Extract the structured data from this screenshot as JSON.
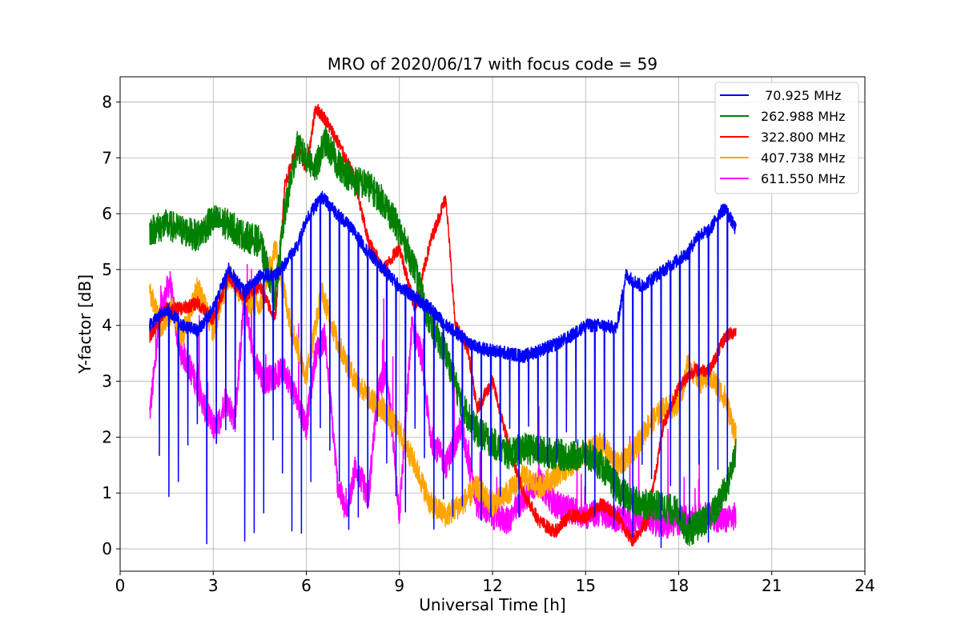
{
  "chart_data": {
    "type": "line",
    "title": "MRO of 2020/06/17 with focus code = 59",
    "xlabel": "Universal Time [h]",
    "ylabel": "Y-factor [dB]",
    "xlim": [
      0,
      24
    ],
    "ylim": [
      -0.4,
      8.45
    ],
    "xticks": [
      0,
      3,
      6,
      9,
      12,
      15,
      18,
      21,
      24
    ],
    "yticks": [
      0,
      1,
      2,
      3,
      4,
      5,
      6,
      7,
      8
    ],
    "grid": true,
    "legend_position": "top-right",
    "series": [
      {
        "name": " 70.925 MHz",
        "color": "#0000ff",
        "dips": {
          "start": 0.95,
          "period": 0.305,
          "end": 19.8,
          "floor_min": 0.0,
          "floor_max": 2.3
        },
        "points": [
          [
            0.95,
            4.0
          ],
          [
            1.5,
            4.3
          ],
          [
            2.0,
            4.0
          ],
          [
            2.5,
            3.9
          ],
          [
            3.0,
            4.3
          ],
          [
            3.5,
            5.0
          ],
          [
            4.0,
            4.6
          ],
          [
            4.5,
            4.9
          ],
          [
            5.0,
            4.9
          ],
          [
            5.3,
            5.1
          ],
          [
            5.7,
            5.4
          ],
          [
            6.0,
            5.9
          ],
          [
            6.5,
            6.3
          ],
          [
            7.0,
            6.0
          ],
          [
            7.5,
            5.7
          ],
          [
            8.0,
            5.3
          ],
          [
            8.5,
            5.0
          ],
          [
            9.0,
            4.7
          ],
          [
            9.5,
            4.5
          ],
          [
            10.0,
            4.3
          ],
          [
            10.5,
            4.0
          ],
          [
            11.0,
            3.8
          ],
          [
            11.5,
            3.6
          ],
          [
            12.0,
            3.55
          ],
          [
            12.5,
            3.5
          ],
          [
            13.0,
            3.45
          ],
          [
            13.5,
            3.55
          ],
          [
            14.0,
            3.65
          ],
          [
            14.5,
            3.8
          ],
          [
            15.0,
            4.0
          ],
          [
            15.5,
            4.0
          ],
          [
            16.0,
            3.95
          ],
          [
            16.3,
            4.9
          ],
          [
            16.8,
            4.7
          ],
          [
            17.3,
            4.9
          ],
          [
            17.8,
            5.1
          ],
          [
            18.3,
            5.3
          ],
          [
            18.6,
            5.6
          ],
          [
            19.0,
            5.7
          ],
          [
            19.3,
            6.0
          ],
          [
            19.5,
            6.1
          ],
          [
            19.85,
            5.7
          ]
        ]
      },
      {
        "name": "262.988 MHz",
        "color": "#008000",
        "points": [
          [
            0.95,
            5.7
          ],
          [
            1.5,
            5.8
          ],
          [
            2.0,
            5.7
          ],
          [
            2.5,
            5.6
          ],
          [
            3.0,
            5.9
          ],
          [
            3.5,
            5.8
          ],
          [
            4.0,
            5.6
          ],
          [
            4.5,
            5.5
          ],
          [
            5.0,
            4.5
          ],
          [
            5.3,
            6.0
          ],
          [
            5.7,
            7.2
          ],
          [
            6.0,
            7.0
          ],
          [
            6.3,
            6.8
          ],
          [
            6.6,
            7.3
          ],
          [
            7.0,
            6.9
          ],
          [
            7.5,
            6.6
          ],
          [
            8.0,
            6.5
          ],
          [
            8.5,
            6.2
          ],
          [
            9.0,
            5.7
          ],
          [
            9.5,
            5.0
          ],
          [
            10.0,
            4.0
          ],
          [
            10.5,
            3.5
          ],
          [
            11.0,
            2.6
          ],
          [
            11.5,
            2.1
          ],
          [
            12.0,
            1.9
          ],
          [
            12.5,
            1.7
          ],
          [
            13.0,
            1.8
          ],
          [
            13.5,
            1.75
          ],
          [
            14.0,
            1.7
          ],
          [
            14.5,
            1.65
          ],
          [
            15.0,
            1.7
          ],
          [
            15.5,
            1.5
          ],
          [
            16.0,
            1.1
          ],
          [
            16.5,
            0.85
          ],
          [
            17.0,
            0.8
          ],
          [
            17.5,
            0.75
          ],
          [
            18.0,
            0.65
          ],
          [
            18.3,
            0.3
          ],
          [
            18.7,
            0.45
          ],
          [
            19.2,
            0.7
          ],
          [
            19.6,
            1.2
          ],
          [
            19.85,
            1.8
          ]
        ]
      },
      {
        "name": "322.800 MHz",
        "color": "#ff0000",
        "points": [
          [
            0.95,
            3.8
          ],
          [
            1.5,
            4.3
          ],
          [
            2.0,
            4.3
          ],
          [
            2.5,
            4.4
          ],
          [
            3.0,
            4.1
          ],
          [
            3.5,
            4.9
          ],
          [
            4.0,
            4.5
          ],
          [
            4.5,
            4.7
          ],
          [
            5.0,
            4.1
          ],
          [
            5.3,
            6.5
          ],
          [
            5.7,
            7.2
          ],
          [
            6.0,
            6.8
          ],
          [
            6.3,
            7.9
          ],
          [
            6.6,
            7.7
          ],
          [
            7.0,
            7.3
          ],
          [
            7.5,
            6.7
          ],
          [
            8.0,
            5.5
          ],
          [
            8.5,
            5.0
          ],
          [
            9.0,
            5.4
          ],
          [
            9.5,
            4.3
          ],
          [
            10.0,
            5.5
          ],
          [
            10.5,
            6.3
          ],
          [
            10.8,
            4.0
          ],
          [
            11.2,
            3.6
          ],
          [
            11.5,
            2.5
          ],
          [
            12.0,
            3.0
          ],
          [
            12.5,
            1.9
          ],
          [
            13.0,
            1.0
          ],
          [
            13.5,
            0.5
          ],
          [
            14.0,
            0.3
          ],
          [
            14.5,
            0.6
          ],
          [
            15.0,
            0.55
          ],
          [
            15.5,
            0.8
          ],
          [
            16.0,
            0.6
          ],
          [
            16.5,
            0.15
          ],
          [
            17.0,
            0.5
          ],
          [
            17.5,
            2.2
          ],
          [
            18.0,
            2.9
          ],
          [
            18.5,
            3.2
          ],
          [
            19.0,
            3.2
          ],
          [
            19.5,
            3.8
          ],
          [
            19.85,
            3.9
          ]
        ]
      },
      {
        "name": "407.738 MHz",
        "color": "#ffa500",
        "points": [
          [
            0.95,
            4.6
          ],
          [
            1.3,
            4.0
          ],
          [
            1.7,
            4.3
          ],
          [
            2.0,
            3.8
          ],
          [
            2.5,
            4.7
          ],
          [
            3.0,
            3.9
          ],
          [
            3.5,
            4.9
          ],
          [
            4.0,
            4.5
          ],
          [
            4.5,
            4.3
          ],
          [
            5.0,
            5.4
          ],
          [
            5.5,
            4.0
          ],
          [
            6.0,
            3.1
          ],
          [
            6.5,
            4.6
          ],
          [
            7.0,
            3.7
          ],
          [
            7.5,
            3.1
          ],
          [
            8.0,
            2.7
          ],
          [
            8.5,
            2.5
          ],
          [
            9.0,
            2.1
          ],
          [
            9.5,
            1.5
          ],
          [
            10.0,
            0.8
          ],
          [
            10.5,
            0.6
          ],
          [
            11.0,
            0.8
          ],
          [
            11.5,
            1.1
          ],
          [
            12.0,
            0.8
          ],
          [
            12.5,
            1.0
          ],
          [
            13.0,
            1.3
          ],
          [
            13.5,
            1.1
          ],
          [
            14.0,
            1.3
          ],
          [
            14.5,
            1.5
          ],
          [
            15.0,
            1.7
          ],
          [
            15.5,
            1.9
          ],
          [
            16.0,
            1.5
          ],
          [
            16.5,
            1.7
          ],
          [
            17.0,
            2.2
          ],
          [
            17.5,
            2.5
          ],
          [
            18.0,
            2.6
          ],
          [
            18.3,
            3.3
          ],
          [
            18.7,
            3.0
          ],
          [
            19.0,
            3.1
          ],
          [
            19.5,
            2.7
          ],
          [
            19.85,
            2.0
          ]
        ]
      },
      {
        "name": "611.550 MHz",
        "color": "#ff00ff",
        "points": [
          [
            0.95,
            2.4
          ],
          [
            1.3,
            4.2
          ],
          [
            1.6,
            4.8
          ],
          [
            1.9,
            3.6
          ],
          [
            2.2,
            3.3
          ],
          [
            2.5,
            2.9
          ],
          [
            2.8,
            2.4
          ],
          [
            3.1,
            2.1
          ],
          [
            3.4,
            2.7
          ],
          [
            3.7,
            2.3
          ],
          [
            4.0,
            4.5
          ],
          [
            4.3,
            3.4
          ],
          [
            4.6,
            3.0
          ],
          [
            5.0,
            3.1
          ],
          [
            5.3,
            3.2
          ],
          [
            5.6,
            2.8
          ],
          [
            6.0,
            2.2
          ],
          [
            6.3,
            3.5
          ],
          [
            6.6,
            3.8
          ],
          [
            7.0,
            1.2
          ],
          [
            7.3,
            0.6
          ],
          [
            7.6,
            1.5
          ],
          [
            8.0,
            0.9
          ],
          [
            8.3,
            2.8
          ],
          [
            8.6,
            3.2
          ],
          [
            9.0,
            0.6
          ],
          [
            9.4,
            4.0
          ],
          [
            9.7,
            3.5
          ],
          [
            10.0,
            2.0
          ],
          [
            10.5,
            1.5
          ],
          [
            11.0,
            2.2
          ],
          [
            11.5,
            0.8
          ],
          [
            12.0,
            0.6
          ],
          [
            12.5,
            0.5
          ],
          [
            13.0,
            0.9
          ],
          [
            13.5,
            1.2
          ],
          [
            14.0,
            0.8
          ],
          [
            14.5,
            0.7
          ],
          [
            15.0,
            0.6
          ],
          [
            15.5,
            0.65
          ],
          [
            16.0,
            0.55
          ],
          [
            16.5,
            0.5
          ],
          [
            17.0,
            0.55
          ],
          [
            17.5,
            0.4
          ],
          [
            18.0,
            0.5
          ],
          [
            18.5,
            0.55
          ],
          [
            19.0,
            0.6
          ],
          [
            19.5,
            0.5
          ],
          [
            19.85,
            0.6
          ]
        ]
      }
    ]
  }
}
